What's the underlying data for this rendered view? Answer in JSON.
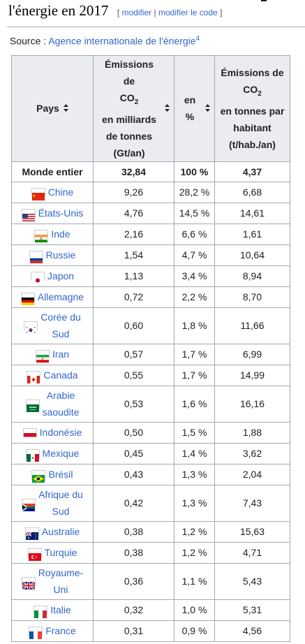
{
  "heading": {
    "title": "l'énergie en 2017",
    "edit_open": "[",
    "edit_link": "modifier",
    "edit_sep": "|",
    "edit_code_link": "modifier le code",
    "edit_close": "]"
  },
  "source": {
    "label": "Source : ",
    "link": "Agence internationale de l'énergie",
    "ref": "4"
  },
  "table": {
    "headers": {
      "pays": "Pays",
      "emissions_1": "Émissions de",
      "emissions_2": "CO",
      "emissions_sub": "2",
      "emissions_3": "en milliards",
      "emissions_4": "de tonnes",
      "emissions_5": "(Gt/an)",
      "percent": "en %",
      "perhab_1": "Émissions de",
      "perhab_2": "CO",
      "perhab_sub": "2",
      "perhab_3": "en tonnes par",
      "perhab_4": "habitant",
      "perhab_5": "(t/hab./an)"
    },
    "world": {
      "name": "Monde entier",
      "emissions": "32,84",
      "percent": "100 %",
      "per_capita": "4,37"
    },
    "rows": [
      {
        "flag": "china-flag-icon",
        "name": "Chine",
        "emissions": "9,26",
        "percent": "28,2 %",
        "per_capita": "6,68"
      },
      {
        "flag": "usa-flag-icon",
        "name": "États-Unis",
        "emissions": "4,76",
        "percent": "14,5 %",
        "per_capita": "14,61"
      },
      {
        "flag": "india-flag-icon",
        "name": "Inde",
        "emissions": "2,16",
        "percent": "6,6 %",
        "per_capita": "1,61"
      },
      {
        "flag": "russia-flag-icon",
        "name": "Russie",
        "emissions": "1,54",
        "percent": "4,7 %",
        "per_capita": "10,64"
      },
      {
        "flag": "japan-flag-icon",
        "name": "Japon",
        "emissions": "1,13",
        "percent": "3,4 %",
        "per_capita": "8,94"
      },
      {
        "flag": "germany-flag-icon",
        "name": "Allemagne",
        "emissions": "0,72",
        "percent": "2,2 %",
        "per_capita": "8,70"
      },
      {
        "flag": "south-korea-flag-icon",
        "name_1": "Corée du",
        "name_2": "Sud",
        "emissions": "0,60",
        "percent": "1,8 %",
        "per_capita": "11,66"
      },
      {
        "flag": "iran-flag-icon",
        "name": "Iran",
        "emissions": "0,57",
        "percent": "1,7 %",
        "per_capita": "6,99"
      },
      {
        "flag": "canada-flag-icon",
        "name": "Canada",
        "emissions": "0,55",
        "percent": "1,7 %",
        "per_capita": "14,99"
      },
      {
        "flag": "saudi-arabia-flag-icon",
        "name_1": "Arabie",
        "name_2": "saoudite",
        "emissions": "0,53",
        "percent": "1,6 %",
        "per_capita": "16,16"
      },
      {
        "flag": "indonesia-flag-icon",
        "name": "Indonésie",
        "emissions": "0,50",
        "percent": "1,5 %",
        "per_capita": "1,88"
      },
      {
        "flag": "mexico-flag-icon",
        "name": "Mexique",
        "emissions": "0,45",
        "percent": "1,4 %",
        "per_capita": "3,62"
      },
      {
        "flag": "brazil-flag-icon",
        "name": "Brésil",
        "emissions": "0,43",
        "percent": "1,3 %",
        "per_capita": "2,04"
      },
      {
        "flag": "south-africa-flag-icon",
        "name_1": "Afrique du",
        "name_2": "Sud",
        "emissions": "0,42",
        "percent": "1,3 %",
        "per_capita": "7,43"
      },
      {
        "flag": "australia-flag-icon",
        "name": "Australie",
        "emissions": "0,38",
        "percent": "1,2 %",
        "per_capita": "15,63"
      },
      {
        "flag": "turkey-flag-icon",
        "name": "Turquie",
        "emissions": "0,38",
        "percent": "1,2 %",
        "per_capita": "4,71"
      },
      {
        "flag": "uk-flag-icon",
        "name_1": "Royaume-",
        "name_2": "Uni",
        "emissions": "0,36",
        "percent": "1,1 %",
        "per_capita": "5,43"
      },
      {
        "flag": "italy-flag-icon",
        "name": "Italie",
        "emissions": "0,32",
        "percent": "1,0 %",
        "per_capita": "5,31"
      },
      {
        "flag": "france-flag-icon",
        "name": "France",
        "emissions": "0,31",
        "percent": "0,9 %",
        "per_capita": "4,56"
      }
    ]
  },
  "colors": {
    "link": "#3366cc",
    "header_bg": "#eaecf0",
    "border": "#a2a9b1"
  }
}
